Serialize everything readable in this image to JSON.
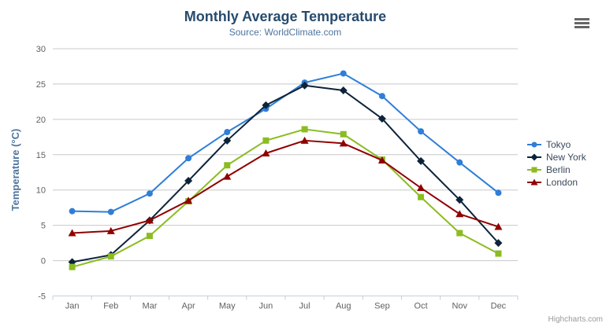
{
  "credit_label": "Highcharts.com",
  "export_menu": {
    "icon": "hamburger-icon"
  },
  "chart_data": {
    "type": "line",
    "title": "Monthly Average Temperature",
    "subtitle": "Source: WorldClimate.com",
    "categories": [
      "Jan",
      "Feb",
      "Mar",
      "Apr",
      "May",
      "Jun",
      "Jul",
      "Aug",
      "Sep",
      "Oct",
      "Nov",
      "Dec"
    ],
    "xlabel": "",
    "ylabel": "Temperature (°C)",
    "ylim": [
      -5,
      30
    ],
    "ytick_interval": 5,
    "grid": true,
    "legend_position": "right",
    "series": [
      {
        "name": "Tokyo",
        "color": "#2f7ed8",
        "marker": "circle",
        "values": [
          7.0,
          6.9,
          9.5,
          14.5,
          18.2,
          21.5,
          25.2,
          26.5,
          23.3,
          18.3,
          13.9,
          9.6
        ]
      },
      {
        "name": "New York",
        "color": "#0d233a",
        "marker": "diamond",
        "values": [
          -0.2,
          0.8,
          5.7,
          11.3,
          17.0,
          22.0,
          24.8,
          24.1,
          20.1,
          14.1,
          8.6,
          2.5
        ]
      },
      {
        "name": "Berlin",
        "color": "#8bbc21",
        "marker": "square",
        "values": [
          -0.9,
          0.6,
          3.5,
          8.4,
          13.5,
          17.0,
          18.6,
          17.9,
          14.3,
          9.0,
          3.9,
          1.0
        ]
      },
      {
        "name": "London",
        "color": "#910000",
        "marker": "triangle",
        "values": [
          3.9,
          4.2,
          5.7,
          8.5,
          11.9,
          15.2,
          17.0,
          16.6,
          14.2,
          10.3,
          6.6,
          4.8
        ]
      }
    ]
  }
}
